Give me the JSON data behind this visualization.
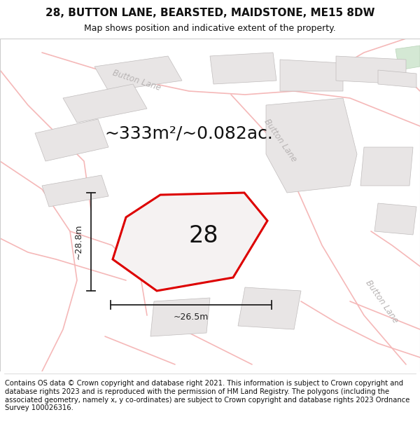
{
  "title_line1": "28, BUTTON LANE, BEARSTED, MAIDSTONE, ME15 8DW",
  "title_line2": "Map shows position and indicative extent of the property.",
  "area_text": "~333m²/~0.082ac.",
  "plot_number": "28",
  "dim_width": "~26.5m",
  "dim_height": "~28.8m",
  "footer_text": "Contains OS data © Crown copyright and database right 2021. This information is subject to Crown copyright and database rights 2023 and is reproduced with the permission of HM Land Registry. The polygons (including the associated geometry, namely x, y co-ordinates) are subject to Crown copyright and database rights 2023 Ordnance Survey 100026316.",
  "map_bg": "#f8f7f7",
  "road_color": "#f5b8b8",
  "road_lw": 1.2,
  "building_fill": "#e8e5e5",
  "building_edge": "#c0bcbc",
  "building_edge_lw": 0.5,
  "plot_fill": "#f5f2f2",
  "plot_edge": "#dd0000",
  "plot_edge_width": 2.2,
  "green_fill": "#d4e8d4",
  "green_edge": "#b8d4b8",
  "road_label_color": "#b8b4b4",
  "annotation_color": "#222222",
  "title_fontsize": 11,
  "subtitle_fontsize": 9,
  "area_fontsize": 18,
  "plot_num_fontsize": 24,
  "dim_fontsize": 9,
  "footer_fontsize": 7.2,
  "road_label_fontsize": 8.5
}
